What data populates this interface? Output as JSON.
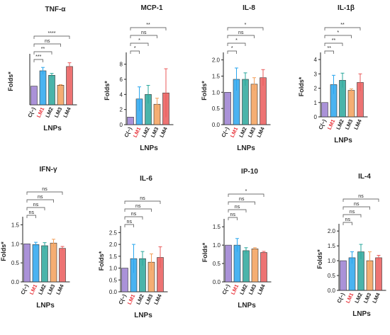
{
  "figure": {
    "x_axis_label": "LNPs",
    "y_axis_label": "Folds*"
  },
  "colors": {
    "C(−)": "#9b7fd1",
    "LM1": "#2aa6ee",
    "LM2": "#2aa79b",
    "LM3": "#f3a05a",
    "LM4": "#ea5a5a",
    "lm_label_red": "#e8333a",
    "text": "#222222"
  },
  "chart_data": [
    {
      "type": "bar",
      "title": "TNF-α",
      "categories": [
        "C(−)",
        "LM1",
        "LM2",
        "LM3",
        "LM4"
      ],
      "values": [
        1.0,
        1.82,
        1.58,
        1.05,
        2.05
      ],
      "errors": [
        0.0,
        0.18,
        0.1,
        0.03,
        0.2
      ],
      "ylim": [
        0,
        2.5
      ],
      "yticks": [],
      "ylabel": "Folds*",
      "xlabel": "LNPs",
      "significance": [
        {
          "from": 0,
          "to": 1,
          "label": "***"
        },
        {
          "from": 0,
          "to": 2,
          "label": "**"
        },
        {
          "from": 0,
          "to": 3,
          "label": "ns"
        },
        {
          "from": 0,
          "to": 4,
          "label": "****"
        }
      ]
    },
    {
      "type": "bar",
      "title": "MCP-1",
      "categories": [
        "C(−)",
        "LM1",
        "LM2",
        "LM3",
        "LM4"
      ],
      "values": [
        1.0,
        3.4,
        4.0,
        2.7,
        4.2
      ],
      "errors": [
        0.0,
        1.6,
        1.2,
        0.8,
        3.2
      ],
      "ylim": [
        0,
        9
      ],
      "yticks": [
        0,
        2,
        4,
        6,
        8
      ],
      "ylabel": "Folds*",
      "xlabel": "LNPs",
      "significance": [
        {
          "from": 0,
          "to": 1,
          "label": "*"
        },
        {
          "from": 0,
          "to": 2,
          "label": "*"
        },
        {
          "from": 0,
          "to": 3,
          "label": "ns"
        },
        {
          "from": 0,
          "to": 4,
          "label": "**"
        }
      ]
    },
    {
      "type": "bar",
      "title": "IL-8",
      "categories": [
        "C(−)",
        "LM1",
        "LM2",
        "LM3",
        "LM4"
      ],
      "values": [
        1.0,
        1.4,
        1.4,
        1.25,
        1.45
      ],
      "errors": [
        0.0,
        0.35,
        0.2,
        0.2,
        0.25
      ],
      "ylim": [
        0,
        2.1
      ],
      "yticks": [
        0.0,
        0.5,
        1.0,
        1.5,
        2.0
      ],
      "ylabel": "Folds*",
      "xlabel": "LNPs",
      "significance": [
        {
          "from": 0,
          "to": 1,
          "label": "*"
        },
        {
          "from": 0,
          "to": 2,
          "label": "*"
        },
        {
          "from": 0,
          "to": 3,
          "label": "ns"
        },
        {
          "from": 0,
          "to": 4,
          "label": "*"
        }
      ]
    },
    {
      "type": "bar",
      "title": "IL-1β",
      "categories": [
        "C(−)",
        "LM1",
        "LM2",
        "LM3",
        "LM4"
      ],
      "values": [
        1.0,
        2.25,
        2.55,
        1.85,
        2.4
      ],
      "errors": [
        0.0,
        0.65,
        0.5,
        0.1,
        0.6
      ],
      "ylim": [
        0,
        4.2
      ],
      "yticks": [
        0,
        1,
        2,
        3,
        4
      ],
      "ylabel": "Folds*",
      "xlabel": "LNPs",
      "significance": [
        {
          "from": 0,
          "to": 1,
          "label": "**"
        },
        {
          "from": 0,
          "to": 2,
          "label": "**"
        },
        {
          "from": 0,
          "to": 3,
          "label": "*"
        },
        {
          "from": 0,
          "to": 4,
          "label": "**"
        }
      ]
    },
    {
      "type": "bar",
      "title": "IFN-γ",
      "categories": [
        "C(−)",
        "LM1",
        "LM2",
        "LM3",
        "LM4"
      ],
      "values": [
        1.0,
        0.98,
        0.95,
        1.02,
        0.88
      ],
      "errors": [
        0.0,
        0.06,
        0.08,
        0.1,
        0.05
      ],
      "ylim": [
        0,
        1.6
      ],
      "yticks": [
        0.0,
        0.5,
        1.0,
        1.5
      ],
      "ylabel": "Folds*",
      "xlabel": "LNPs",
      "significance": [
        {
          "from": 0,
          "to": 1,
          "label": "ns"
        },
        {
          "from": 0,
          "to": 2,
          "label": "ns"
        },
        {
          "from": 0,
          "to": 3,
          "label": "ns"
        },
        {
          "from": 0,
          "to": 4,
          "label": "ns"
        }
      ]
    },
    {
      "type": "bar",
      "title": "IL-6",
      "categories": [
        "C(−)",
        "LM1",
        "LM2",
        "LM3",
        "LM4"
      ],
      "values": [
        1.0,
        1.4,
        1.4,
        1.25,
        1.45
      ],
      "errors": [
        0.0,
        0.6,
        0.3,
        0.35,
        0.45
      ],
      "ylim": [
        0,
        2.6
      ],
      "yticks": [
        0.0,
        0.5,
        1.0,
        1.5,
        2.0,
        2.5
      ],
      "ylabel": "Folds*",
      "xlabel": "LNPs",
      "significance": [
        {
          "from": 0,
          "to": 1,
          "label": "ns"
        },
        {
          "from": 0,
          "to": 2,
          "label": "ns"
        },
        {
          "from": 0,
          "to": 3,
          "label": "ns"
        },
        {
          "from": 0,
          "to": 4,
          "label": "ns"
        }
      ]
    },
    {
      "type": "bar",
      "title": "IP-10",
      "categories": [
        "C(−)",
        "LM1",
        "LM2",
        "LM3",
        "LM4"
      ],
      "values": [
        1.0,
        1.0,
        0.85,
        0.9,
        0.8
      ],
      "errors": [
        0.0,
        0.18,
        0.08,
        0.03,
        0.03
      ],
      "ylim": [
        0,
        1.6
      ],
      "yticks": [
        0.0,
        0.5,
        1.0,
        1.5
      ],
      "ylabel": "Folds*",
      "xlabel": "LNPs",
      "significance": [
        {
          "from": 0,
          "to": 1,
          "label": "ns"
        },
        {
          "from": 0,
          "to": 2,
          "label": "ns"
        },
        {
          "from": 0,
          "to": 3,
          "label": "ns"
        },
        {
          "from": 0,
          "to": 4,
          "label": "*"
        }
      ]
    },
    {
      "type": "bar",
      "title": "IL-4",
      "categories": [
        "C(−)",
        "LM1",
        "LM2",
        "LM3",
        "LM4"
      ],
      "values": [
        1.0,
        1.1,
        1.3,
        1.0,
        1.1
      ],
      "errors": [
        0.0,
        0.2,
        0.25,
        0.3,
        0.08
      ],
      "ylim": [
        0,
        2.1
      ],
      "yticks": [
        0.0,
        0.5,
        1.0,
        1.5,
        2.0
      ],
      "ylabel": "Folds*",
      "xlabel": "LNPs",
      "significance": [
        {
          "from": 0,
          "to": 1,
          "label": "ns"
        },
        {
          "from": 0,
          "to": 2,
          "label": "ns"
        },
        {
          "from": 0,
          "to": 3,
          "label": "ns"
        },
        {
          "from": 0,
          "to": 4,
          "label": "ns"
        }
      ]
    }
  ]
}
